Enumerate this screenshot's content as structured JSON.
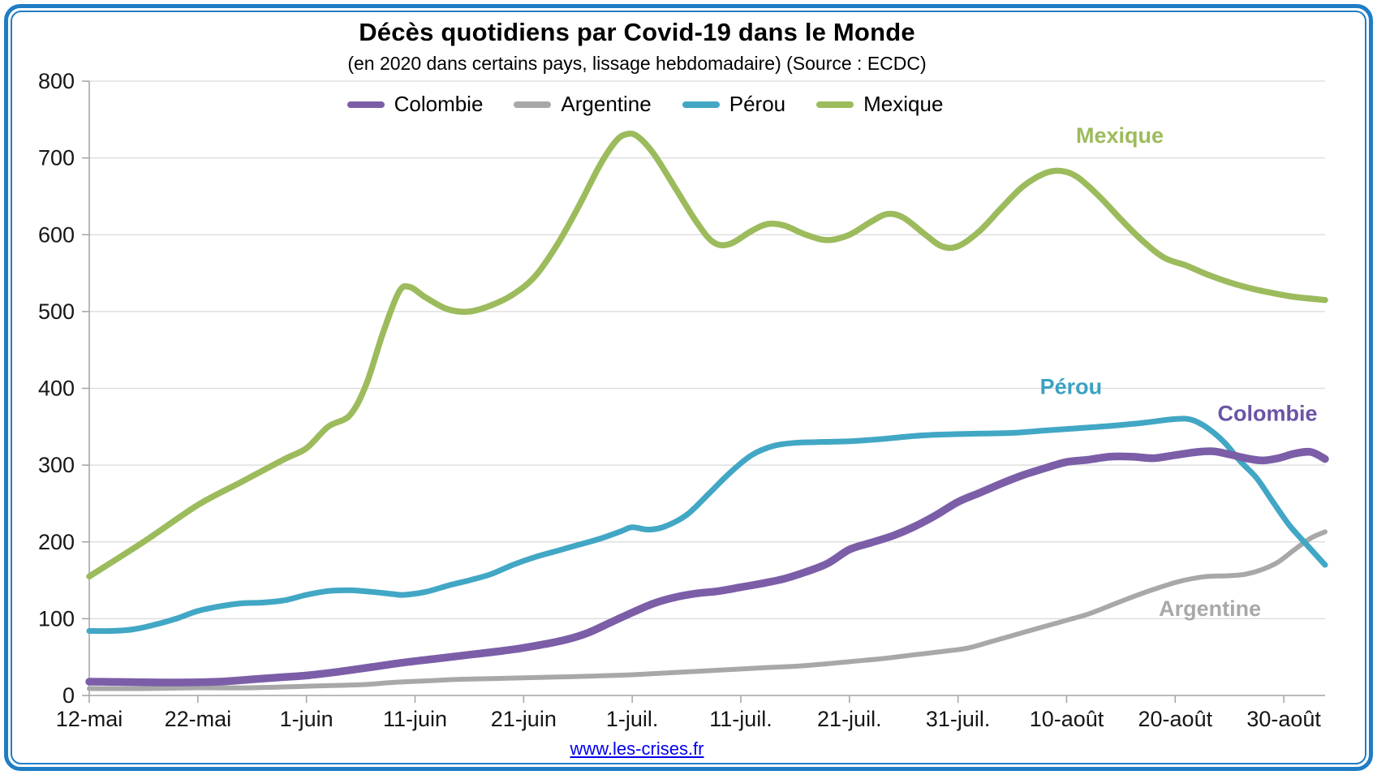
{
  "page": {
    "title": "Décès quotidiens par Covid-19 dans le Monde",
    "subtitle": "(en 2020 dans certains pays, lissage hebdomadaire) (Source : ECDC)",
    "footer_link": "www.les-crises.fr"
  },
  "chart_data": {
    "type": "line",
    "title": "Décès quotidiens par Covid-19 dans le Monde",
    "subtitle": "(en 2020 dans certains pays, lissage hebdomadaire) (Source : ECDC)",
    "grid": true,
    "legend_position": "top",
    "x_axis": {
      "unit": "jours depuis le 12 mai 2020",
      "tick_days": [
        0,
        10,
        20,
        30,
        40,
        50,
        60,
        70,
        80,
        90,
        100,
        110
      ],
      "tick_labels": [
        "12-mai",
        "22-mai",
        "1-juin",
        "11-juin",
        "21-juin",
        "1-juil.",
        "11-juil.",
        "21-juil.",
        "31-juil.",
        "10-août",
        "20-août",
        "30-août"
      ],
      "max_day": 113.8
    },
    "y_axis": {
      "min": 0,
      "max": 800,
      "tick_step": 100,
      "tick_labels": [
        "0",
        "100",
        "200",
        "300",
        "400",
        "500",
        "600",
        "700",
        "800"
      ]
    },
    "colors": {
      "border_blue": "#1F7DC5",
      "gridline": "#DADADA",
      "axis": "#A3A3A3",
      "tick_text": "#161616",
      "link_blue": "#0000EE"
    },
    "series": [
      {
        "name": "Mexique",
        "color": "#9CBB5C",
        "label_color": "#9CBB5C",
        "width": 7.5,
        "annotation": {
          "text": "Mexique",
          "day": 94.9,
          "value": 729
        },
        "points": [
          [
            0,
            155
          ],
          [
            5,
            200
          ],
          [
            10,
            248
          ],
          [
            14,
            278
          ],
          [
            18,
            308
          ],
          [
            20,
            322
          ],
          [
            22,
            350
          ],
          [
            24,
            365
          ],
          [
            25.5,
            405
          ],
          [
            27,
            470
          ],
          [
            28.5,
            525
          ],
          [
            29.5,
            532
          ],
          [
            31,
            518
          ],
          [
            33,
            503
          ],
          [
            35,
            500
          ],
          [
            37,
            508
          ],
          [
            39,
            522
          ],
          [
            41,
            545
          ],
          [
            43,
            585
          ],
          [
            45,
            635
          ],
          [
            47,
            690
          ],
          [
            48.5,
            722
          ],
          [
            49.5,
            731
          ],
          [
            50.5,
            728
          ],
          [
            52,
            705
          ],
          [
            54,
            660
          ],
          [
            56,
            615
          ],
          [
            57.5,
            590
          ],
          [
            59,
            588
          ],
          [
            61,
            605
          ],
          [
            62.5,
            614
          ],
          [
            64,
            612
          ],
          [
            66,
            600
          ],
          [
            68,
            593
          ],
          [
            70,
            600
          ],
          [
            72,
            617
          ],
          [
            73.5,
            627
          ],
          [
            75,
            622
          ],
          [
            77,
            600
          ],
          [
            78.5,
            585
          ],
          [
            80,
            585
          ],
          [
            82,
            605
          ],
          [
            84,
            635
          ],
          [
            86,
            663
          ],
          [
            88,
            680
          ],
          [
            89.5,
            683
          ],
          [
            91,
            675
          ],
          [
            93,
            650
          ],
          [
            95,
            620
          ],
          [
            97,
            592
          ],
          [
            99,
            570
          ],
          [
            101,
            560
          ],
          [
            103,
            548
          ],
          [
            105,
            538
          ],
          [
            107,
            530
          ],
          [
            109,
            524
          ],
          [
            111,
            519
          ],
          [
            113.8,
            515
          ]
        ]
      },
      {
        "name": "Argentine",
        "color": "#A8A8A8",
        "label_color": "#A8A8A8",
        "width": 6,
        "annotation": {
          "text": "Argentine",
          "day": 103.2,
          "value": 113
        },
        "points": [
          [
            0,
            9
          ],
          [
            5,
            9
          ],
          [
            10,
            10
          ],
          [
            15,
            10
          ],
          [
            20,
            12
          ],
          [
            25,
            14
          ],
          [
            28,
            17
          ],
          [
            31,
            19
          ],
          [
            34,
            21
          ],
          [
            37,
            22
          ],
          [
            40,
            23
          ],
          [
            43,
            24
          ],
          [
            46,
            25
          ],
          [
            50,
            27
          ],
          [
            54,
            30
          ],
          [
            58,
            33
          ],
          [
            62,
            36
          ],
          [
            66,
            39
          ],
          [
            70,
            44
          ],
          [
            73,
            48
          ],
          [
            76,
            53
          ],
          [
            79,
            58
          ],
          [
            81,
            62
          ],
          [
            83,
            70
          ],
          [
            85,
            78
          ],
          [
            87,
            86
          ],
          [
            89,
            94
          ],
          [
            90,
            98
          ],
          [
            92,
            106
          ],
          [
            94,
            117
          ],
          [
            96,
            128
          ],
          [
            98,
            138
          ],
          [
            100,
            147
          ],
          [
            101.5,
            152
          ],
          [
            103,
            155
          ],
          [
            105,
            156
          ],
          [
            106.5,
            158
          ],
          [
            108,
            164
          ],
          [
            109.5,
            174
          ],
          [
            111,
            190
          ],
          [
            112.5,
            205
          ],
          [
            113.8,
            213
          ]
        ]
      },
      {
        "name": "Pérou",
        "color": "#41A7C5",
        "label_color": "#3AA2C2",
        "width": 7,
        "annotation": {
          "text": "Pérou",
          "day": 90.4,
          "value": 402
        },
        "points": [
          [
            0,
            84
          ],
          [
            2,
            84
          ],
          [
            4,
            86
          ],
          [
            6,
            92
          ],
          [
            8,
            100
          ],
          [
            10,
            110
          ],
          [
            12,
            116
          ],
          [
            14,
            120
          ],
          [
            16,
            121
          ],
          [
            18,
            124
          ],
          [
            20,
            131
          ],
          [
            22,
            136
          ],
          [
            24,
            137
          ],
          [
            26,
            135
          ],
          [
            28,
            132
          ],
          [
            29,
            131
          ],
          [
            31,
            135
          ],
          [
            33,
            143
          ],
          [
            35,
            150
          ],
          [
            37,
            158
          ],
          [
            39,
            170
          ],
          [
            41,
            180
          ],
          [
            43,
            188
          ],
          [
            45,
            196
          ],
          [
            47,
            204
          ],
          [
            49,
            214
          ],
          [
            50,
            219
          ],
          [
            51.5,
            216
          ],
          [
            53,
            220
          ],
          [
            55,
            235
          ],
          [
            57,
            262
          ],
          [
            59,
            290
          ],
          [
            61,
            313
          ],
          [
            63,
            325
          ],
          [
            65,
            329
          ],
          [
            67,
            330
          ],
          [
            70,
            331
          ],
          [
            73,
            334
          ],
          [
            76,
            338
          ],
          [
            79,
            340
          ],
          [
            82,
            341
          ],
          [
            85,
            342
          ],
          [
            88,
            345
          ],
          [
            91,
            348
          ],
          [
            94,
            351
          ],
          [
            97,
            355
          ],
          [
            100,
            360
          ],
          [
            101.5,
            359
          ],
          [
            103,
            348
          ],
          [
            104.5,
            330
          ],
          [
            106,
            305
          ],
          [
            107.5,
            283
          ],
          [
            109,
            252
          ],
          [
            110.5,
            222
          ],
          [
            112,
            198
          ],
          [
            113.8,
            170
          ]
        ]
      },
      {
        "name": "Colombie",
        "color": "#7B5EA7",
        "label_color": "#6B54A5",
        "width": 9.5,
        "annotation": {
          "text": "Colombie",
          "day": 108.5,
          "value": 367
        },
        "points": [
          [
            0,
            18
          ],
          [
            3,
            17.5
          ],
          [
            6,
            17
          ],
          [
            9,
            17
          ],
          [
            12,
            18
          ],
          [
            15,
            21
          ],
          [
            18,
            24
          ],
          [
            20,
            26
          ],
          [
            23,
            31
          ],
          [
            26,
            37
          ],
          [
            29,
            43
          ],
          [
            32,
            48
          ],
          [
            35,
            53
          ],
          [
            38,
            58
          ],
          [
            40,
            62
          ],
          [
            42,
            67
          ],
          [
            44,
            73
          ],
          [
            46,
            82
          ],
          [
            48,
            95
          ],
          [
            50,
            108
          ],
          [
            52,
            120
          ],
          [
            54,
            128
          ],
          [
            56,
            133
          ],
          [
            58,
            136
          ],
          [
            60,
            141
          ],
          [
            62,
            146
          ],
          [
            64,
            152
          ],
          [
            66,
            161
          ],
          [
            68,
            172
          ],
          [
            70,
            190
          ],
          [
            72,
            199
          ],
          [
            74,
            208
          ],
          [
            76,
            220
          ],
          [
            78,
            235
          ],
          [
            80,
            252
          ],
          [
            82,
            264
          ],
          [
            84,
            276
          ],
          [
            86,
            287
          ],
          [
            88,
            296
          ],
          [
            90,
            304
          ],
          [
            92,
            307
          ],
          [
            94,
            311
          ],
          [
            96,
            311
          ],
          [
            98,
            309
          ],
          [
            100,
            313
          ],
          [
            102,
            317
          ],
          [
            103.5,
            318
          ],
          [
            105,
            314
          ],
          [
            106.5,
            309
          ],
          [
            108,
            306
          ],
          [
            109.5,
            309
          ],
          [
            111,
            315
          ],
          [
            112.5,
            317
          ],
          [
            113.8,
            308
          ]
        ]
      }
    ],
    "legend_order": [
      "Colombie",
      "Argentine",
      "Pérou",
      "Mexique"
    ]
  }
}
